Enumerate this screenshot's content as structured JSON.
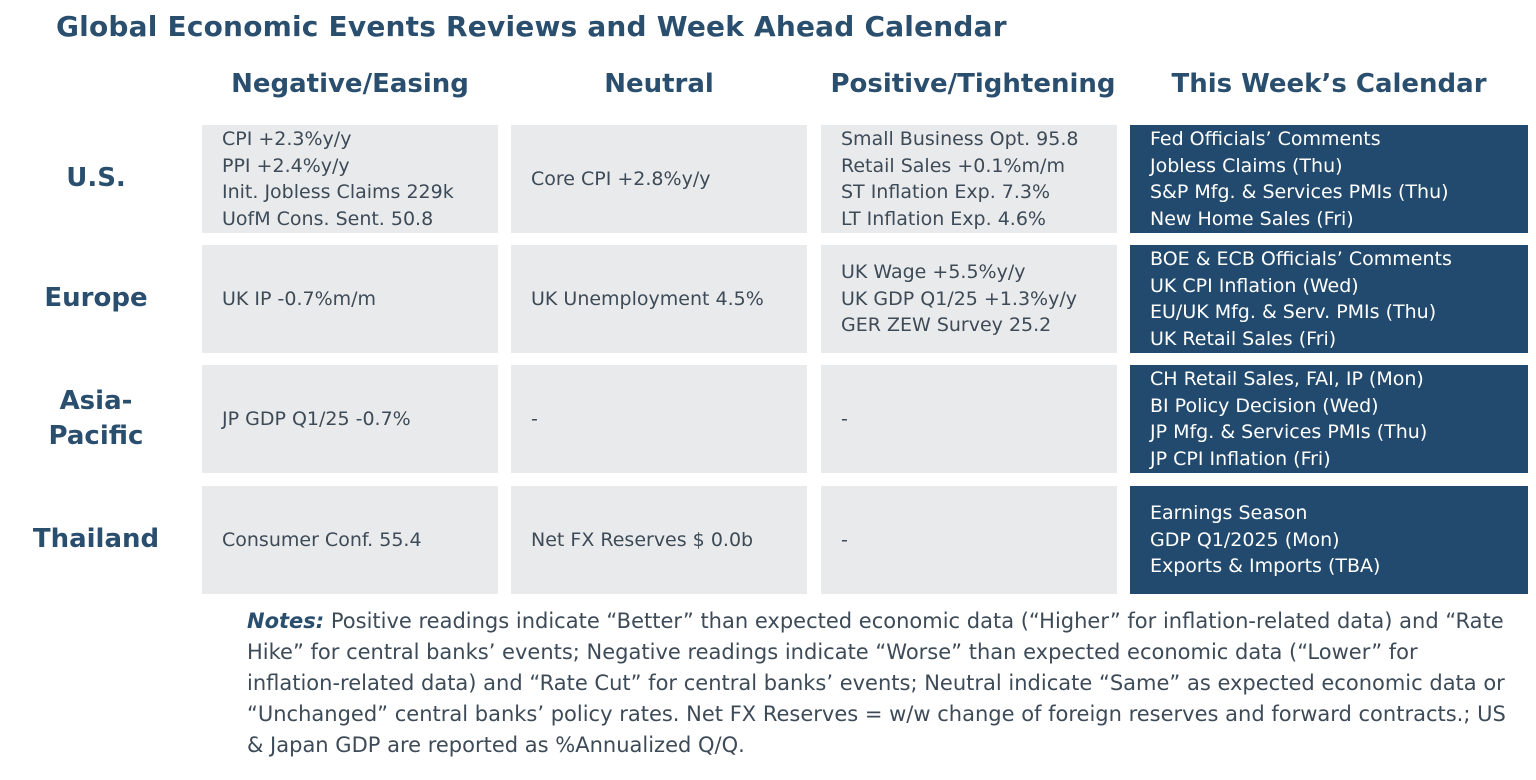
{
  "title": "Global Economic Events Reviews and Week Ahead Calendar",
  "columns": [
    "Negative/Easing",
    "Neutral",
    "Positive/Tightening",
    "This Week’s Calendar"
  ],
  "rows": [
    {
      "region": "U.S.",
      "negative": [
        "CPI +2.3%y/y",
        "PPI +2.4%y/y",
        "Init. Jobless Claims 229k",
        "UofM Cons. Sent. 50.8"
      ],
      "neutral": [
        "Core CPI +2.8%y/y"
      ],
      "positive": [
        "Small Business Opt. 95.8",
        "Retail Sales +0.1%m/m",
        "ST Inflation Exp. 7.3%",
        "LT Inflation Exp. 4.6%"
      ],
      "calendar": [
        "Fed Officials’ Comments",
        "Jobless Claims (Thu)",
        "S&P Mfg. & Services PMIs (Thu)",
        "New Home Sales (Fri)"
      ]
    },
    {
      "region": "Europe",
      "negative": [
        "UK IP -0.7%m/m"
      ],
      "neutral": [
        "UK Unemployment 4.5%"
      ],
      "positive": [
        "UK Wage +5.5%y/y",
        "UK GDP Q1/25 +1.3%y/y",
        "GER ZEW Survey 25.2"
      ],
      "calendar": [
        "BOE & ECB Officials’ Comments",
        "UK CPI Inflation (Wed)",
        "EU/UK Mfg. & Serv. PMIs (Thu)",
        "UK Retail Sales (Fri)"
      ]
    },
    {
      "region_lines": [
        "Asia-",
        "Pacific"
      ],
      "negative": [
        "JP GDP Q1/25 -0.7%"
      ],
      "neutral": [
        "-"
      ],
      "positive": [
        "-"
      ],
      "calendar": [
        "CH Retail Sales, FAI, IP (Mon)",
        "BI Policy Decision (Wed)",
        "JP Mfg. & Services PMIs (Thu)",
        "JP CPI Inflation (Fri)"
      ]
    },
    {
      "region": "Thailand",
      "negative": [
        "Consumer Conf. 55.4"
      ],
      "neutral": [
        "Net FX Reserves $ 0.0b"
      ],
      "positive": [
        "-"
      ],
      "calendar": [
        "Earnings Season",
        "GDP Q1/2025 (Mon)",
        "Exports & Imports (TBA)"
      ]
    }
  ],
  "notes": {
    "label": "Notes:",
    "text": " Positive readings indicate “Better” than expected economic data (“Higher” for inflation-related data) and “Rate Hike” for central banks’ events; Negative readings indicate “Worse” than expected economic data (“Lower” for inflation-related data) and “Rate Cut” for central banks’ events; Neutral indicate “Same” as expected economic data or “Unchanged” central banks’ policy rates. Net FX Reserves = w/w change of foreign reserves and forward contracts.; US & Japan GDP are reported as %Annualized Q/Q."
  }
}
